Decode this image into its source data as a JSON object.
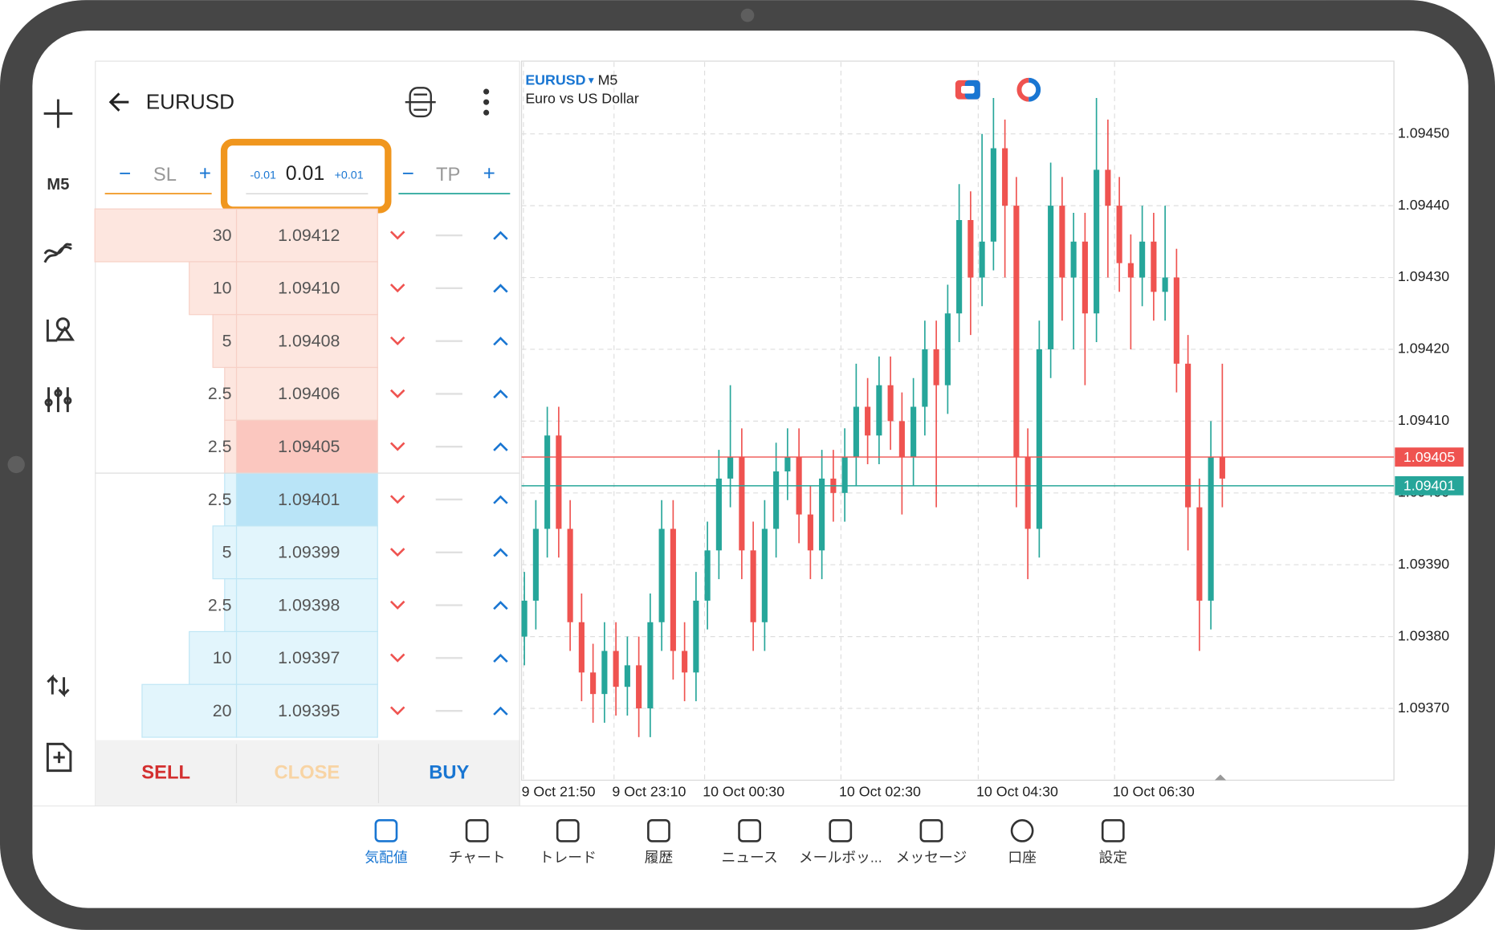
{
  "header": {
    "symbol": "EURUSD",
    "timeframe": "M5"
  },
  "order": {
    "sl": "SL",
    "tp": "TP",
    "minus": "-0.01",
    "lot": "0.01",
    "plus": "+0.01"
  },
  "depth": {
    "sell": [
      {
        "volume": 30,
        "price": "1.09412"
      },
      {
        "volume": 10,
        "price": "1.09410"
      },
      {
        "volume": 5,
        "price": "1.09408"
      },
      {
        "volume": 2.5,
        "price": "1.09406"
      },
      {
        "volume": 2.5,
        "price": "1.09405"
      }
    ],
    "buy": [
      {
        "volume": 2.5,
        "price": "1.09401"
      },
      {
        "volume": 5,
        "price": "1.09399"
      },
      {
        "volume": 2.5,
        "price": "1.09398"
      },
      {
        "volume": 10,
        "price": "1.09397"
      },
      {
        "volume": 20,
        "price": "1.09395"
      }
    ],
    "buttons": {
      "sell": "SELL",
      "close": "CLOSE",
      "buy": "BUY"
    }
  },
  "chart_data": {
    "type": "candlestick",
    "symbol": "EURUSD",
    "timeframe": "M5",
    "subtitle": "Euro vs US Dollar",
    "up_color": "#26a69a",
    "down_color": "#ef5350",
    "ylim": [
      1.0936,
      1.0946
    ],
    "yticks": [
      {
        "value": 1.0945,
        "label": "1.09450"
      },
      {
        "value": 1.0944,
        "label": "1.09440"
      },
      {
        "value": 1.0943,
        "label": "1.09430"
      },
      {
        "value": 1.0942,
        "label": "1.09420"
      },
      {
        "value": 1.0941,
        "label": "1.09410"
      },
      {
        "value": 1.094,
        "label": "1.09400"
      },
      {
        "value": 1.0939,
        "label": "1.09390"
      },
      {
        "value": 1.0938,
        "label": "1.09380"
      },
      {
        "value": 1.0937,
        "label": "1.09370"
      }
    ],
    "x_labels": [
      "9 Oct 21:50",
      "9 Oct 23:10",
      "10 Oct 00:30",
      "10 Oct 02:30",
      "10 Oct 04:30",
      "10 Oct 06:30"
    ],
    "grid": true,
    "ask": {
      "value": 1.09405,
      "label": "1.09405",
      "color": "#ef5350"
    },
    "bid": {
      "value": 1.09401,
      "label": "1.09401",
      "color": "#26a69a"
    },
    "candles": [
      {
        "o": 1.0938,
        "h": 1.09389,
        "l": 1.09376,
        "c": 1.09385
      },
      {
        "o": 1.09385,
        "h": 1.09399,
        "l": 1.09381,
        "c": 1.09395
      },
      {
        "o": 1.09395,
        "h": 1.09412,
        "l": 1.09391,
        "c": 1.09408
      },
      {
        "o": 1.09408,
        "h": 1.09412,
        "l": 1.09391,
        "c": 1.09395
      },
      {
        "o": 1.09395,
        "h": 1.09399,
        "l": 1.09378,
        "c": 1.09382
      },
      {
        "o": 1.09382,
        "h": 1.09386,
        "l": 1.09371,
        "c": 1.09375
      },
      {
        "o": 1.09375,
        "h": 1.09379,
        "l": 1.09368,
        "c": 1.09372
      },
      {
        "o": 1.09372,
        "h": 1.09382,
        "l": 1.09368,
        "c": 1.09378
      },
      {
        "o": 1.09378,
        "h": 1.09382,
        "l": 1.09369,
        "c": 1.09373
      },
      {
        "o": 1.09373,
        "h": 1.0938,
        "l": 1.09369,
        "c": 1.09376
      },
      {
        "o": 1.09376,
        "h": 1.0938,
        "l": 1.09366,
        "c": 1.0937
      },
      {
        "o": 1.0937,
        "h": 1.09386,
        "l": 1.09366,
        "c": 1.09382
      },
      {
        "o": 1.09382,
        "h": 1.09399,
        "l": 1.09378,
        "c": 1.09395
      },
      {
        "o": 1.09395,
        "h": 1.09399,
        "l": 1.09374,
        "c": 1.09378
      },
      {
        "o": 1.09378,
        "h": 1.09382,
        "l": 1.09371,
        "c": 1.09375
      },
      {
        "o": 1.09375,
        "h": 1.09389,
        "l": 1.09371,
        "c": 1.09385
      },
      {
        "o": 1.09385,
        "h": 1.09396,
        "l": 1.09381,
        "c": 1.09392
      },
      {
        "o": 1.09392,
        "h": 1.09406,
        "l": 1.09388,
        "c": 1.09402
      },
      {
        "o": 1.09402,
        "h": 1.09415,
        "l": 1.09398,
        "c": 1.09405
      },
      {
        "o": 1.09405,
        "h": 1.09409,
        "l": 1.09388,
        "c": 1.09392
      },
      {
        "o": 1.09392,
        "h": 1.09396,
        "l": 1.09378,
        "c": 1.09382
      },
      {
        "o": 1.09382,
        "h": 1.09399,
        "l": 1.09378,
        "c": 1.09395
      },
      {
        "o": 1.09395,
        "h": 1.09407,
        "l": 1.09391,
        "c": 1.09403
      },
      {
        "o": 1.09403,
        "h": 1.09409,
        "l": 1.09399,
        "c": 1.09405
      },
      {
        "o": 1.09405,
        "h": 1.09409,
        "l": 1.09393,
        "c": 1.09397
      },
      {
        "o": 1.09397,
        "h": 1.09401,
        "l": 1.09388,
        "c": 1.09392
      },
      {
        "o": 1.09392,
        "h": 1.09406,
        "l": 1.09388,
        "c": 1.09402
      },
      {
        "o": 1.09402,
        "h": 1.09406,
        "l": 1.09396,
        "c": 1.094
      },
      {
        "o": 1.094,
        "h": 1.09409,
        "l": 1.09396,
        "c": 1.09405
      },
      {
        "o": 1.09405,
        "h": 1.09418,
        "l": 1.09401,
        "c": 1.09412
      },
      {
        "o": 1.09412,
        "h": 1.09416,
        "l": 1.09404,
        "c": 1.09408
      },
      {
        "o": 1.09408,
        "h": 1.09419,
        "l": 1.09404,
        "c": 1.09415
      },
      {
        "o": 1.09415,
        "h": 1.09419,
        "l": 1.09406,
        "c": 1.0941
      },
      {
        "o": 1.0941,
        "h": 1.09414,
        "l": 1.09397,
        "c": 1.09405
      },
      {
        "o": 1.09405,
        "h": 1.09416,
        "l": 1.09401,
        "c": 1.09412
      },
      {
        "o": 1.09412,
        "h": 1.09424,
        "l": 1.09408,
        "c": 1.0942
      },
      {
        "o": 1.0942,
        "h": 1.09424,
        "l": 1.09398,
        "c": 1.09415
      },
      {
        "o": 1.09415,
        "h": 1.09429,
        "l": 1.09411,
        "c": 1.09425
      },
      {
        "o": 1.09425,
        "h": 1.09443,
        "l": 1.09421,
        "c": 1.09438
      },
      {
        "o": 1.09438,
        "h": 1.09442,
        "l": 1.09422,
        "c": 1.0943
      },
      {
        "o": 1.0943,
        "h": 1.0945,
        "l": 1.09426,
        "c": 1.09435
      },
      {
        "o": 1.09435,
        "h": 1.09455,
        "l": 1.09431,
        "c": 1.09448
      },
      {
        "o": 1.09448,
        "h": 1.09452,
        "l": 1.0943,
        "c": 1.0944
      },
      {
        "o": 1.0944,
        "h": 1.09444,
        "l": 1.09398,
        "c": 1.09405
      },
      {
        "o": 1.09405,
        "h": 1.09409,
        "l": 1.09388,
        "c": 1.09395
      },
      {
        "o": 1.09395,
        "h": 1.09424,
        "l": 1.09391,
        "c": 1.0942
      },
      {
        "o": 1.0942,
        "h": 1.09446,
        "l": 1.09416,
        "c": 1.0944
      },
      {
        "o": 1.0944,
        "h": 1.09444,
        "l": 1.09424,
        "c": 1.0943
      },
      {
        "o": 1.0943,
        "h": 1.09439,
        "l": 1.0942,
        "c": 1.09435
      },
      {
        "o": 1.09435,
        "h": 1.09439,
        "l": 1.09415,
        "c": 1.09425
      },
      {
        "o": 1.09425,
        "h": 1.09455,
        "l": 1.09421,
        "c": 1.09445
      },
      {
        "o": 1.09445,
        "h": 1.09452,
        "l": 1.0943,
        "c": 1.0944
      },
      {
        "o": 1.0944,
        "h": 1.09444,
        "l": 1.09428,
        "c": 1.09432
      },
      {
        "o": 1.09432,
        "h": 1.09436,
        "l": 1.0942,
        "c": 1.0943
      },
      {
        "o": 1.0943,
        "h": 1.0944,
        "l": 1.09426,
        "c": 1.09435
      },
      {
        "o": 1.09435,
        "h": 1.09439,
        "l": 1.09424,
        "c": 1.09428
      },
      {
        "o": 1.09428,
        "h": 1.0944,
        "l": 1.09424,
        "c": 1.0943
      },
      {
        "o": 1.0943,
        "h": 1.09434,
        "l": 1.09414,
        "c": 1.09418
      },
      {
        "o": 1.09418,
        "h": 1.09422,
        "l": 1.09392,
        "c": 1.09398
      },
      {
        "o": 1.09398,
        "h": 1.09402,
        "l": 1.09378,
        "c": 1.09385
      },
      {
        "o": 1.09385,
        "h": 1.0941,
        "l": 1.09381,
        "c": 1.09405
      },
      {
        "o": 1.09405,
        "h": 1.09418,
        "l": 1.09398,
        "c": 1.09402
      }
    ]
  },
  "bottom_nav": [
    "気配値",
    "チャート",
    "トレード",
    "履歴",
    "ニュース",
    "メールボッ...",
    "メッセージ",
    "口座",
    "設定"
  ]
}
